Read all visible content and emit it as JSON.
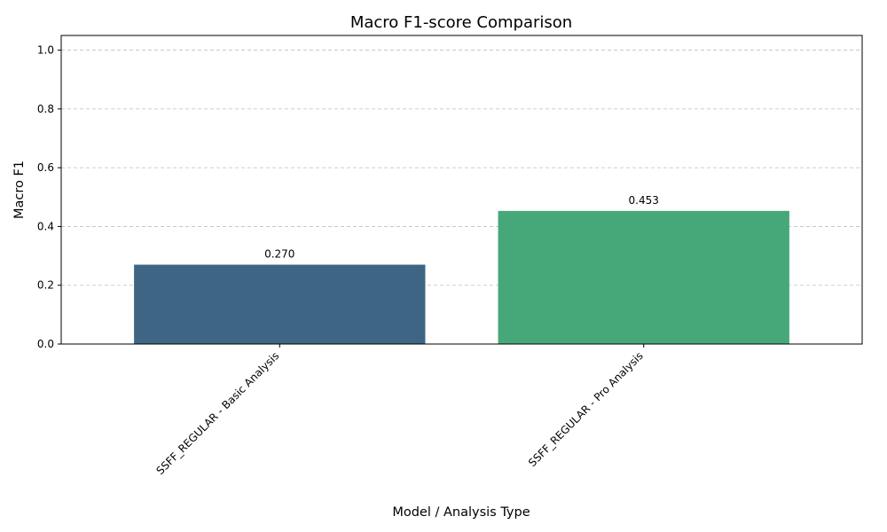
{
  "chart_data": {
    "type": "bar",
    "title": "Macro F1-score Comparison",
    "xlabel": "Model / Analysis Type",
    "ylabel": "Macro F1",
    "categories": [
      "SSFF_REGULAR - Basic Analysis",
      "SSFF_REGULAR - Pro Analysis"
    ],
    "values": [
      0.27,
      0.453
    ],
    "value_labels": [
      "0.270",
      "0.453"
    ],
    "colors": [
      "#3e6684",
      "#46a878"
    ],
    "ylim": [
      0,
      1.05
    ],
    "yticks": [
      0.0,
      0.2,
      0.4,
      0.6,
      0.8,
      1.0
    ],
    "ytick_labels": [
      "0.0",
      "0.2",
      "0.4",
      "0.6",
      "0.8",
      "1.0"
    ],
    "grid": "y-dashed",
    "xtick_rotation": "45-degrees"
  }
}
